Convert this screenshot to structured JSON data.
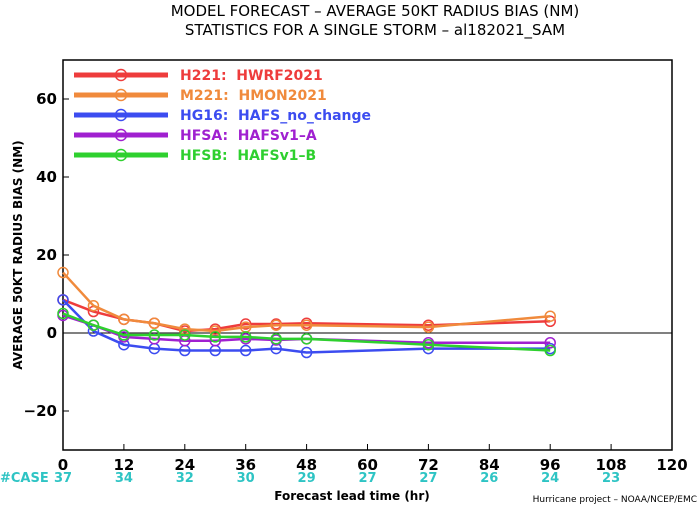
{
  "title_line1": "MODEL FORECAST – AVERAGE 50KT RADIUS BIAS (NM)",
  "title_line2": "STATISTICS FOR A SINGLE STORM – al182021_SAM",
  "credit": "Hurricane project – NOAA/NCEP/EMC",
  "case_label": "#CASE",
  "chart_data": {
    "type": "line",
    "title": "MODEL FORECAST – AVERAGE 50KT RADIUS BIAS (NM)",
    "subtitle": "STATISTICS FOR A SINGLE STORM – al182021_SAM",
    "xlabel": "Forecast lead time (hr)",
    "ylabel": "AVERAGE 50KT RADIUS BIAS (NM)",
    "xlim": [
      0,
      120
    ],
    "ylim": [
      -30,
      70
    ],
    "xticks": [
      0,
      12,
      24,
      36,
      48,
      60,
      72,
      84,
      96,
      108,
      120
    ],
    "yticks": [
      -20,
      0,
      20,
      40,
      60
    ],
    "zero_line": true,
    "legend_position": "top-left",
    "cases": [
      {
        "x": 0,
        "label": "37"
      },
      {
        "x": 12,
        "label": "34"
      },
      {
        "x": 24,
        "label": "32"
      },
      {
        "x": 36,
        "label": "30"
      },
      {
        "x": 48,
        "label": "29"
      },
      {
        "x": 60,
        "label": "27"
      },
      {
        "x": 72,
        "label": "27"
      },
      {
        "x": 84,
        "label": "26"
      },
      {
        "x": 96,
        "label": "24"
      },
      {
        "x": 108,
        "label": "23"
      }
    ],
    "series": [
      {
        "name": "H221:  HWRF2021",
        "color": "#ee3c3c",
        "x": [
          0,
          6,
          12,
          18,
          24,
          30,
          36,
          42,
          48,
          72,
          96
        ],
        "y": [
          8.5,
          5.5,
          3.5,
          2.5,
          0.5,
          1,
          2.3,
          2.3,
          2.5,
          2,
          3
        ]
      },
      {
        "name": "M221:  HMON2021",
        "color": "#f08a3c",
        "x": [
          0,
          6,
          12,
          18,
          24,
          30,
          36,
          42,
          48,
          72,
          96
        ],
        "y": [
          15.5,
          7,
          3.5,
          2.5,
          1,
          0.5,
          1.5,
          2,
          2,
          1.5,
          4.3
        ]
      },
      {
        "name": "HG16:  HAFS_no_change",
        "color": "#3c4cf0",
        "x": [
          0,
          6,
          12,
          18,
          24,
          30,
          36,
          42,
          48,
          72,
          96
        ],
        "y": [
          8.5,
          0.5,
          -3,
          -4,
          -4.5,
          -4.5,
          -4.5,
          -4,
          -5,
          -4,
          -4
        ]
      },
      {
        "name": "HFSA:  HAFSv1–A",
        "color": "#a020d0",
        "x": [
          0,
          6,
          12,
          18,
          24,
          30,
          36,
          42,
          48,
          72,
          96
        ],
        "y": [
          4.5,
          2,
          -1,
          -1.5,
          -2,
          -2,
          -1.5,
          -1.8,
          -1.5,
          -2.5,
          -2.5
        ]
      },
      {
        "name": "HFSB:  HAFSv1–B",
        "color": "#2ed02e",
        "x": [
          0,
          6,
          12,
          18,
          24,
          30,
          36,
          42,
          48,
          72,
          96
        ],
        "y": [
          5,
          2,
          -0.5,
          -0.5,
          -0.5,
          -1,
          -1,
          -1.5,
          -1.5,
          -3,
          -4.5
        ]
      }
    ]
  }
}
